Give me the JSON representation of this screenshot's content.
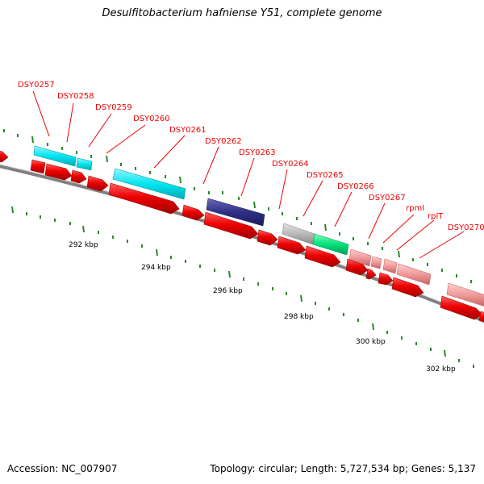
{
  "title": "Desulfitobacterium hafniense Y51, complete genome",
  "footer": {
    "accession": "Accession: NC_007907",
    "summary": "Topology: circular; Length: 5,727,534 bp; Genes: 5,137"
  },
  "colors": {
    "gene_red": "#ee0000",
    "cyan": "#00e5f0",
    "navy": "#2f2f87",
    "gray": "#b9b9b9",
    "green": "#00e07a",
    "pink": "#f09a9a",
    "backbone": "#808080",
    "tick": "#2a8a2a"
  },
  "genes": [
    {
      "label": "DSY0257"
    },
    {
      "label": "DSY0258"
    },
    {
      "label": "DSY0259"
    },
    {
      "label": "DSY0260"
    },
    {
      "label": "DSY0261"
    },
    {
      "label": "DSY0262"
    },
    {
      "label": "DSY0263"
    },
    {
      "label": "DSY0264"
    },
    {
      "label": "DSY0265"
    },
    {
      "label": "DSY0266"
    },
    {
      "label": "DSY0267"
    },
    {
      "label": "rpmI"
    },
    {
      "label": "rplT"
    },
    {
      "label": "DSY0270"
    }
  ],
  "scale": [
    {
      "label": "292 kbp"
    },
    {
      "label": "294 kbp"
    },
    {
      "label": "296 kbp"
    },
    {
      "label": "298 kbp"
    },
    {
      "label": "300 kbp"
    },
    {
      "label": "302 kbp"
    }
  ]
}
